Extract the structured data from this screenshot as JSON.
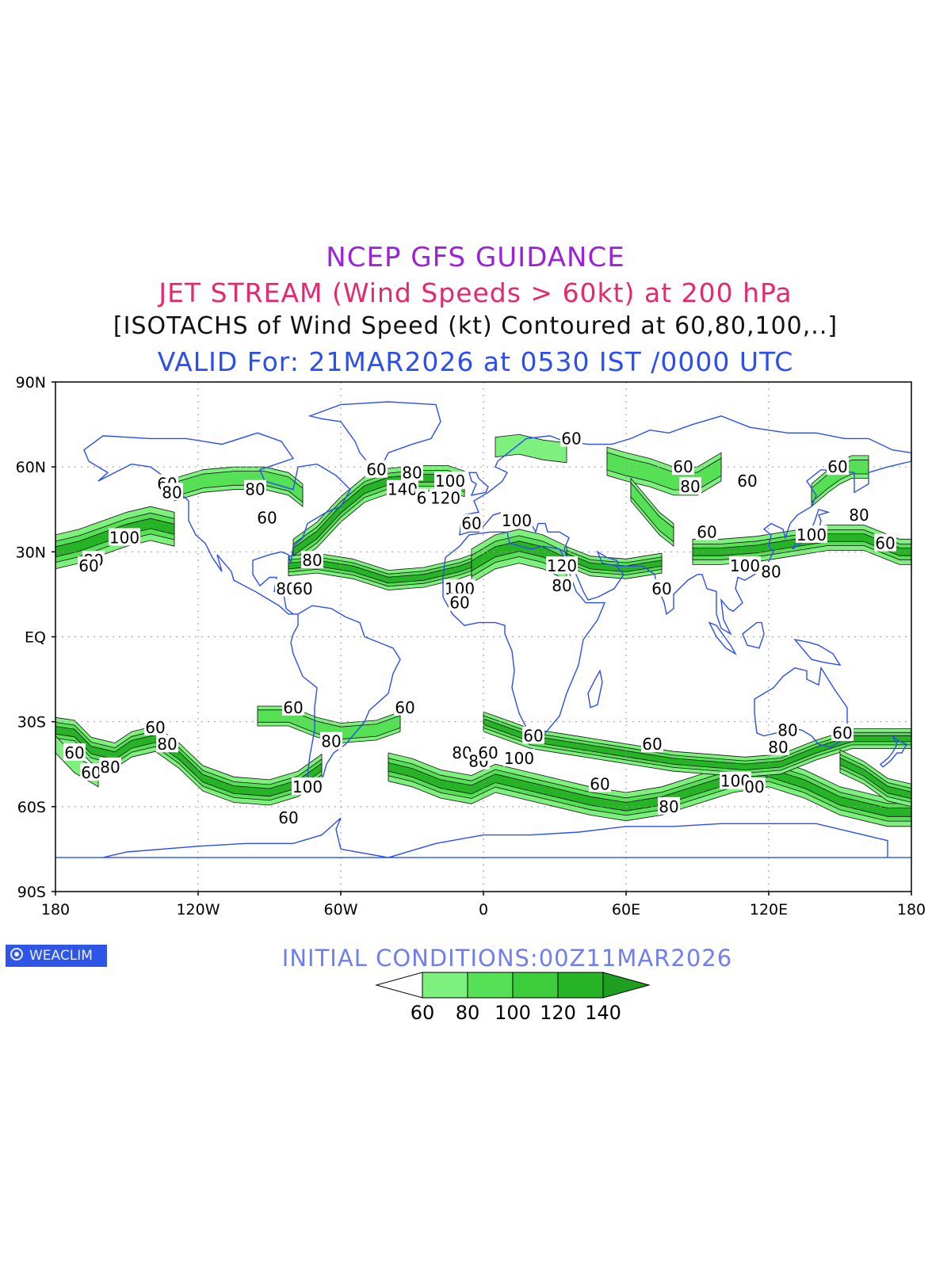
{
  "titles": {
    "line1": {
      "text": "NCEP GFS GUIDANCE",
      "color": "#9b22d6"
    },
    "line2": {
      "text": "JET STREAM (Wind Speeds > 60kt) at 200 hPa",
      "color": "#e8286e"
    },
    "line3": {
      "text": "[ISOTACHS of Wind Speed (kt) Contoured at 60,80,100,..]",
      "color": "#111111"
    },
    "line4": {
      "text": "VALID For: 21MAR2026 at 0530 IST /0000 UTC",
      "color": "#2b4ef0"
    }
  },
  "axes": {
    "lon_labels": [
      "180",
      "120W",
      "60W",
      "0",
      "60E",
      "120E",
      "180"
    ],
    "lat_labels": [
      "90N",
      "60N",
      "30N",
      "EQ",
      "30S",
      "60S",
      "90S"
    ]
  },
  "initial_conditions": "INITIAL CONDITIONS:00Z11MAR2026",
  "logo": "WEACLIM",
  "colorbar": {
    "levels": [
      "60",
      "80",
      "100",
      "120",
      "140"
    ],
    "colors": [
      "#ffffff",
      "#7ef07e",
      "#55e055",
      "#3ccc3c",
      "#26b426",
      "#1ea01e"
    ]
  },
  "colors": {
    "coast": "#2b4ef0",
    "contour": "#111111"
  },
  "contour_labels": [
    {
      "t": "60",
      "lon": -133,
      "lat": 54
    },
    {
      "t": "80",
      "lon": -131,
      "lat": 51
    },
    {
      "t": "100",
      "lon": -151,
      "lat": 35
    },
    {
      "t": "80",
      "lon": -164,
      "lat": 27
    },
    {
      "t": "60",
      "lon": -166,
      "lat": 25
    },
    {
      "t": "80",
      "lon": -96,
      "lat": 52
    },
    {
      "t": "60",
      "lon": -91,
      "lat": 42
    },
    {
      "t": "80",
      "lon": -72,
      "lat": 27
    },
    {
      "t": "80",
      "lon": -83,
      "lat": 17
    },
    {
      "t": "60",
      "lon": -76,
      "lat": 17
    },
    {
      "t": "60",
      "lon": -45,
      "lat": 59
    },
    {
      "t": "80",
      "lon": -30,
      "lat": 58
    },
    {
      "t": "140",
      "lon": -34,
      "lat": 52
    },
    {
      "t": "100",
      "lon": -14,
      "lat": 55
    },
    {
      "t": "6",
      "lon": -26,
      "lat": 49
    },
    {
      "t": "120",
      "lon": -16,
      "lat": 49
    },
    {
      "t": "60",
      "lon": -5,
      "lat": 40
    },
    {
      "t": "100",
      "lon": 14,
      "lat": 41
    },
    {
      "t": "120",
      "lon": 33,
      "lat": 25
    },
    {
      "t": "80",
      "lon": 33,
      "lat": 18
    },
    {
      "t": "100",
      "lon": -10,
      "lat": 17
    },
    {
      "t": "60",
      "lon": -10,
      "lat": 12
    },
    {
      "t": "60",
      "lon": 37,
      "lat": 70
    },
    {
      "t": "60",
      "lon": 84,
      "lat": 60
    },
    {
      "t": "80",
      "lon": 87,
      "lat": 53
    },
    {
      "t": "60",
      "lon": 111,
      "lat": 55
    },
    {
      "t": "60",
      "lon": 149,
      "lat": 60
    },
    {
      "t": "80",
      "lon": 158,
      "lat": 43
    },
    {
      "t": "100",
      "lon": 138,
      "lat": 36
    },
    {
      "t": "60",
      "lon": 94,
      "lat": 37
    },
    {
      "t": "60",
      "lon": 169,
      "lat": 33
    },
    {
      "t": "100",
      "lon": 110,
      "lat": 25
    },
    {
      "t": "80",
      "lon": 121,
      "lat": 23
    },
    {
      "t": "60",
      "lon": 75,
      "lat": 17
    },
    {
      "t": "60",
      "lon": -138,
      "lat": -32
    },
    {
      "t": "80",
      "lon": -133,
      "lat": -38
    },
    {
      "t": "60",
      "lon": -172,
      "lat": -41
    },
    {
      "t": "60",
      "lon": -165,
      "lat": -48
    },
    {
      "t": "80",
      "lon": -157,
      "lat": -46
    },
    {
      "t": "60",
      "lon": -80,
      "lat": -25
    },
    {
      "t": "80",
      "lon": -64,
      "lat": -37
    },
    {
      "t": "100",
      "lon": -74,
      "lat": -53
    },
    {
      "t": "60",
      "lon": -82,
      "lat": -64
    },
    {
      "t": "60",
      "lon": -33,
      "lat": -25
    },
    {
      "t": "80",
      "lon": -9,
      "lat": -41
    },
    {
      "t": "80",
      "lon": -2,
      "lat": -44
    },
    {
      "t": "60",
      "lon": 2,
      "lat": -41
    },
    {
      "t": "100",
      "lon": 15,
      "lat": -43
    },
    {
      "t": "60",
      "lon": 21,
      "lat": -35
    },
    {
      "t": "60",
      "lon": 71,
      "lat": -38
    },
    {
      "t": "60",
      "lon": 49,
      "lat": -52
    },
    {
      "t": "100",
      "lon": 106,
      "lat": -51
    },
    {
      "t": "00",
      "lon": 114,
      "lat": -53
    },
    {
      "t": "80",
      "lon": 78,
      "lat": -60
    },
    {
      "t": "80",
      "lon": 128,
      "lat": -33
    },
    {
      "t": "80",
      "lon": 124,
      "lat": -39
    },
    {
      "t": "60",
      "lon": 151,
      "lat": -34
    }
  ]
}
